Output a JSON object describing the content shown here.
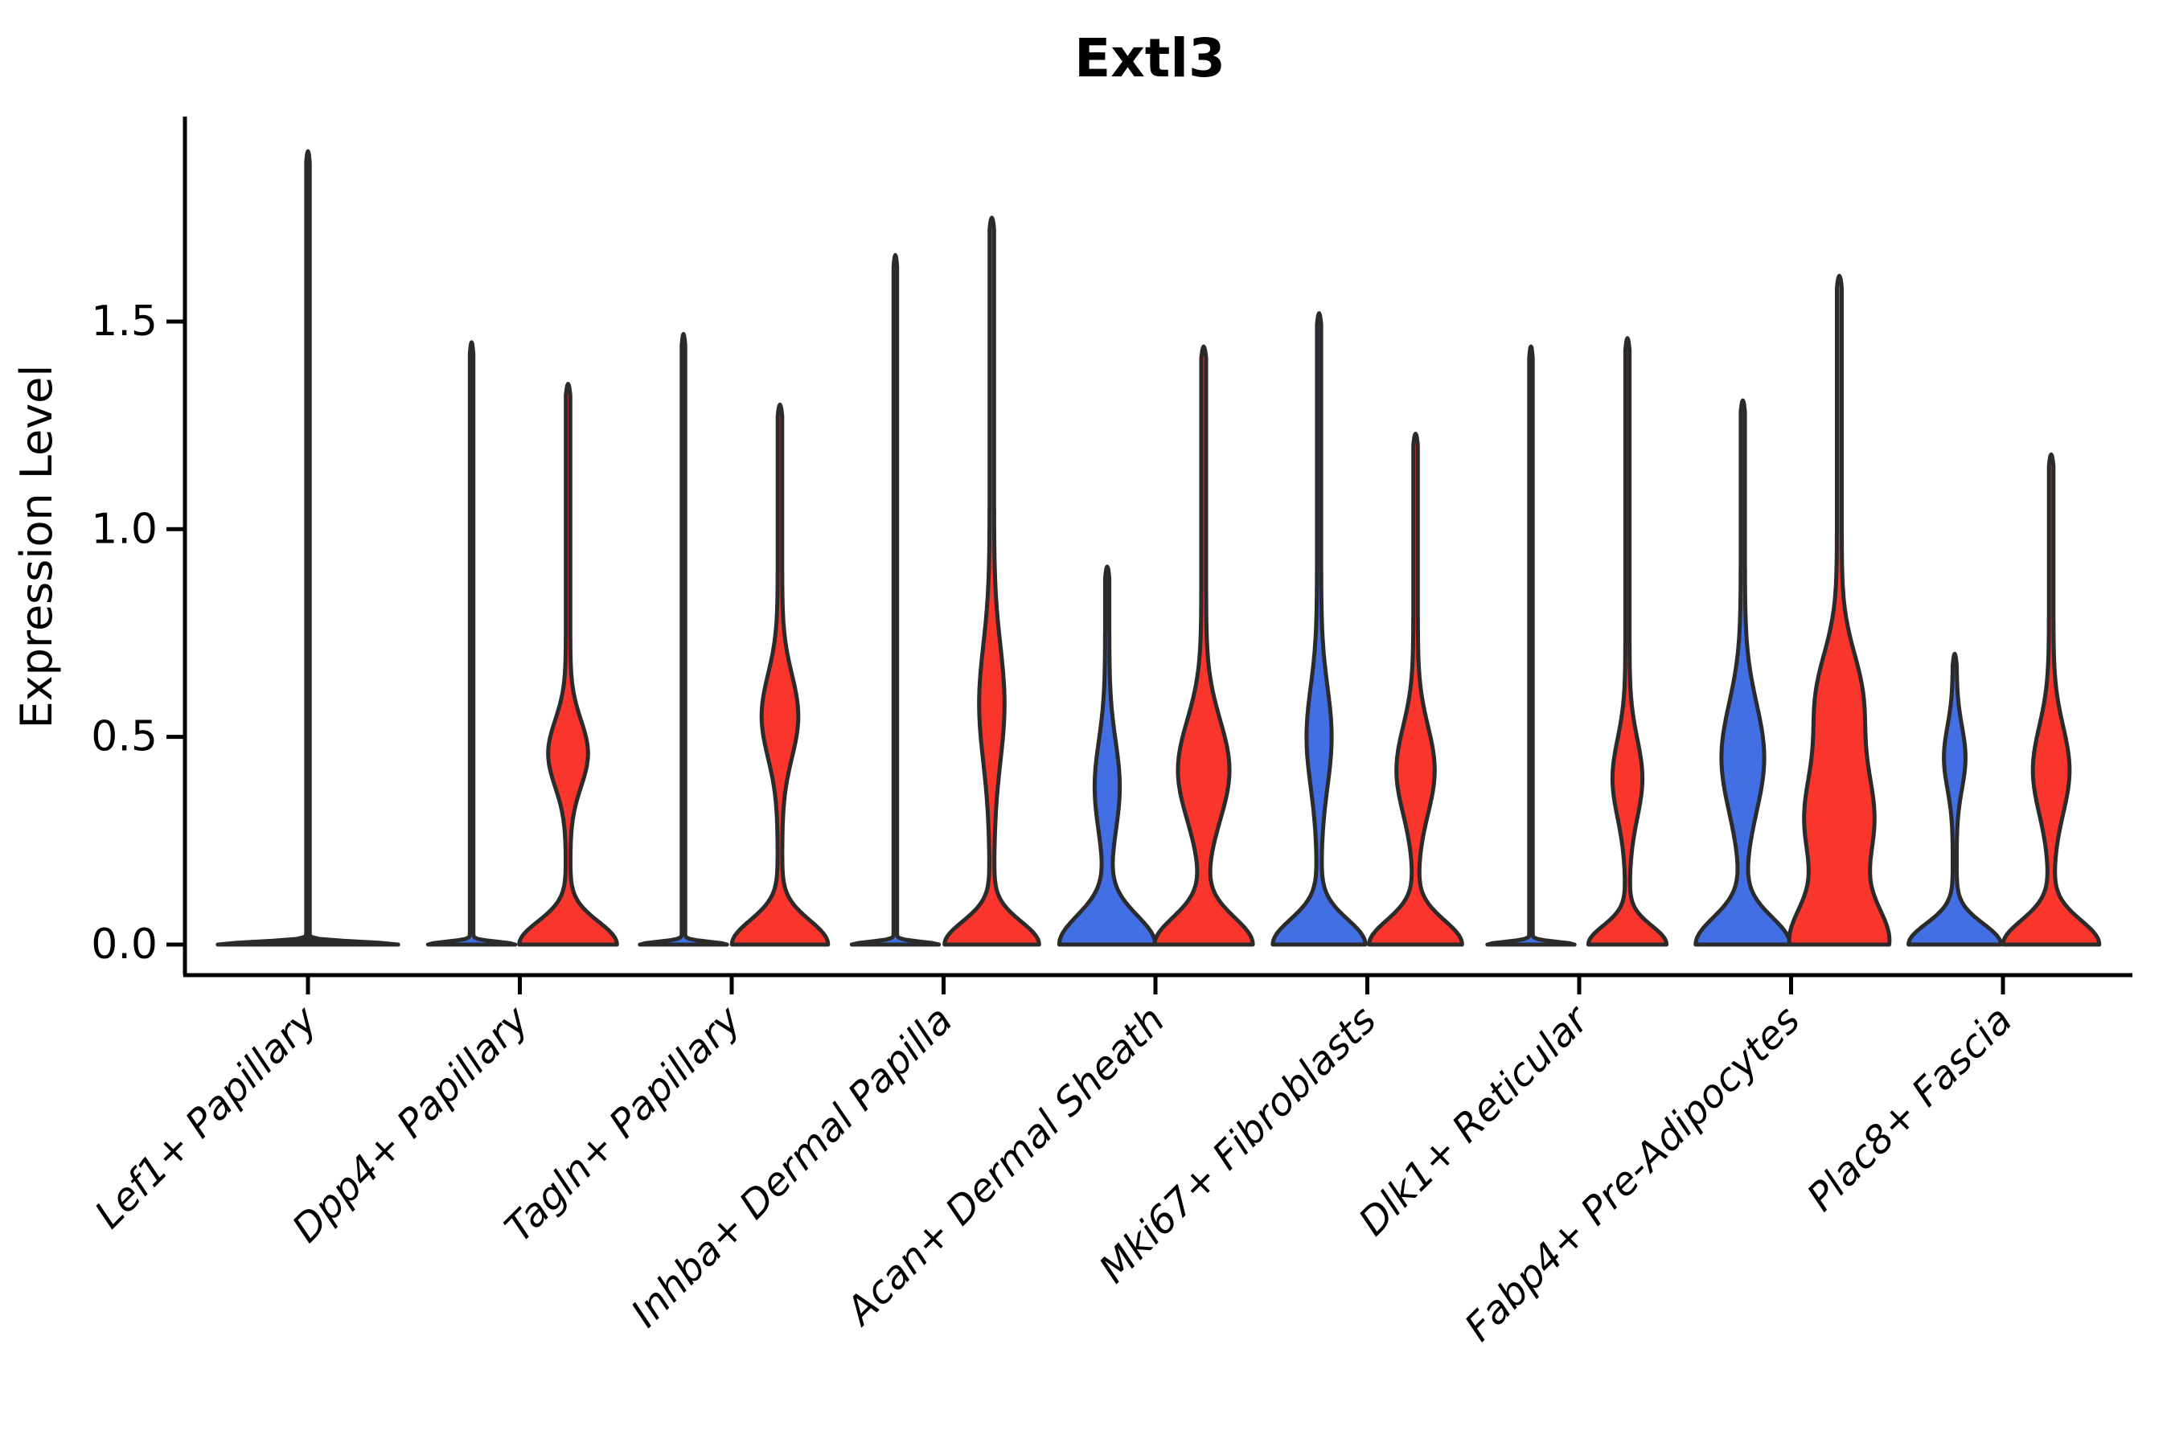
{
  "chart_data": {
    "type": "violin",
    "title": "Extl3",
    "ylabel": "Expression Level",
    "xlabel": "",
    "grid": false,
    "legend": "none",
    "ytick_labels": [
      "0.0",
      "0.5",
      "1.0",
      "1.5"
    ],
    "ytick_values": [
      0.0,
      0.5,
      1.0,
      1.5
    ],
    "ylim": [
      -0.07,
      1.99
    ],
    "categories": [
      "Lef1+ Papillary",
      "Dpp4+ Papillary",
      "Tagln+ Papillary",
      "Inhba+ Dermal Papilla",
      "Acan+ Dermal Sheath",
      "Mki67+ Fibroblasts",
      "Dlk1+ Reticular",
      "Fabp4+ Pre-Adipocytes",
      "Plac8+ Fascia"
    ],
    "series": [
      {
        "name": "blue",
        "color": "#4270E4"
      },
      {
        "name": "red",
        "color": "#F9352C"
      }
    ],
    "style": {
      "outline_color": "#2B2B2B",
      "outline_width": 5,
      "axis_color": "#000000",
      "background": "#FFFFFF"
    },
    "violins": [
      {
        "category_index": 0,
        "category": "Lef1+ Papillary",
        "series": "unknown",
        "offset": 0,
        "max": 1.91,
        "density": {
          "base_halfwidth": 110,
          "base_spread": 0.0065,
          "tail_halfwidth": 2.2,
          "bulges": []
        }
      },
      {
        "category_index": 1,
        "category": "Dpp4+ Papillary",
        "series": "blue",
        "offset": -60,
        "max": 1.45,
        "density": {
          "base_halfwidth": 52,
          "base_spread": 0.0065,
          "tail_halfwidth": 2.2,
          "bulges": []
        }
      },
      {
        "category_index": 1,
        "category": "Dpp4+ Papillary",
        "series": "red",
        "offset": 60,
        "max": 1.35,
        "density": {
          "base_halfwidth": 58,
          "base_spread": 0.055,
          "tail_halfwidth": 2.8,
          "bulges": [
            {
              "v": 0.46,
              "halfwidth": 22,
              "spread": 0.08
            }
          ]
        }
      },
      {
        "category_index": 2,
        "category": "Tagln+ Papillary",
        "series": "blue",
        "offset": -60,
        "max": 1.47,
        "density": {
          "base_halfwidth": 52,
          "base_spread": 0.0065,
          "tail_halfwidth": 2.2,
          "bulges": []
        }
      },
      {
        "category_index": 2,
        "category": "Tagln+ Papillary",
        "series": "red",
        "offset": 60,
        "max": 1.3,
        "density": {
          "base_halfwidth": 57,
          "base_spread": 0.058,
          "tail_halfwidth": 2.8,
          "bulges": [
            {
              "v": 0.55,
              "halfwidth": 20,
              "spread": 0.1
            }
          ]
        }
      },
      {
        "category_index": 3,
        "category": "Inhba+ Dermal Papilla",
        "series": "blue",
        "offset": -60,
        "max": 1.66,
        "density": {
          "base_halfwidth": 52,
          "base_spread": 0.0065,
          "tail_halfwidth": 2.2,
          "bulges": []
        }
      },
      {
        "category_index": 3,
        "category": "Inhba+ Dermal Papilla",
        "series": "red",
        "offset": 60,
        "max": 1.75,
        "density": {
          "base_halfwidth": 56,
          "base_spread": 0.055,
          "tail_halfwidth": 2.8,
          "bulges": [
            {
              "v": 0.58,
              "halfwidth": 13,
              "spread": 0.14
            }
          ]
        }
      },
      {
        "category_index": 4,
        "category": "Acan+ Dermal Sheath",
        "series": "blue",
        "offset": -60,
        "max": 0.91,
        "density": {
          "base_halfwidth": 57,
          "base_spread": 0.07,
          "tail_halfwidth": 2.6,
          "bulges": [
            {
              "v": 0.38,
              "halfwidth": 13,
              "spread": 0.11
            }
          ]
        }
      },
      {
        "category_index": 4,
        "category": "Acan+ Dermal Sheath",
        "series": "red",
        "offset": 60,
        "max": 1.44,
        "density": {
          "base_halfwidth": 58,
          "base_spread": 0.065,
          "tail_halfwidth": 3.0,
          "bulges": [
            {
              "v": 0.42,
              "halfwidth": 29,
              "spread": 0.12
            }
          ]
        }
      },
      {
        "category_index": 5,
        "category": "Mki67+ Fibroblasts",
        "series": "blue",
        "offset": -60,
        "max": 1.52,
        "density": {
          "base_halfwidth": 55,
          "base_spread": 0.06,
          "tail_halfwidth": 2.6,
          "bulges": [
            {
              "v": 0.5,
              "halfwidth": 13,
              "spread": 0.12
            }
          ]
        }
      },
      {
        "category_index": 5,
        "category": "Mki67+ Fibroblasts",
        "series": "red",
        "offset": 60,
        "max": 1.23,
        "density": {
          "base_halfwidth": 55,
          "base_spread": 0.058,
          "tail_halfwidth": 2.8,
          "bulges": [
            {
              "v": 0.42,
              "halfwidth": 21,
              "spread": 0.105
            }
          ]
        }
      },
      {
        "category_index": 6,
        "category": "Dlk1+ Reticular",
        "series": "blue",
        "offset": -60,
        "max": 1.44,
        "density": {
          "base_halfwidth": 52,
          "base_spread": 0.0065,
          "tail_halfwidth": 2.2,
          "bulges": []
        }
      },
      {
        "category_index": 6,
        "category": "Dlk1+ Reticular",
        "series": "red",
        "offset": 60,
        "max": 1.46,
        "density": {
          "base_halfwidth": 46,
          "base_spread": 0.045,
          "tail_halfwidth": 2.6,
          "bulges": [
            {
              "v": 0.4,
              "halfwidth": 16,
              "spread": 0.095
            }
          ]
        }
      },
      {
        "category_index": 7,
        "category": "Fabp4+ Pre-Adipocytes",
        "series": "blue",
        "offset": -60,
        "max": 1.31,
        "density": {
          "base_halfwidth": 56,
          "base_spread": 0.065,
          "tail_halfwidth": 2.6,
          "bulges": [
            {
              "v": 0.45,
              "halfwidth": 24,
              "spread": 0.13
            }
          ]
        }
      },
      {
        "category_index": 7,
        "category": "Fabp4+ Pre-Adipocytes",
        "series": "red",
        "offset": 60,
        "max": 1.61,
        "density": {
          "base_halfwidth": 55,
          "base_spread": 0.09,
          "tail_halfwidth": 3.0,
          "bulges": [
            {
              "v": 0.3,
              "halfwidth": 40,
              "spread": 0.14
            },
            {
              "v": 0.6,
              "halfwidth": 23,
              "spread": 0.11
            }
          ]
        }
      },
      {
        "category_index": 8,
        "category": "Plac8+ Fascia",
        "series": "blue",
        "offset": -60,
        "max": 0.7,
        "density": {
          "base_halfwidth": 55,
          "base_spread": 0.05,
          "tail_halfwidth": 2.4,
          "bulges": [
            {
              "v": 0.45,
              "halfwidth": 11,
              "spread": 0.075
            }
          ]
        }
      },
      {
        "category_index": 8,
        "category": "Plac8+ Fascia",
        "series": "red",
        "offset": 60,
        "max": 1.18,
        "density": {
          "base_halfwidth": 57,
          "base_spread": 0.058,
          "tail_halfwidth": 2.8,
          "bulges": [
            {
              "v": 0.42,
              "halfwidth": 20,
              "spread": 0.105
            }
          ]
        }
      }
    ]
  }
}
